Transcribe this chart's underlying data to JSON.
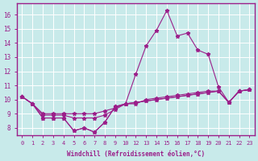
{
  "background_color": "#c8eaea",
  "line_color": "#9b1f8a",
  "grid_color": "#ffffff",
  "xlabel": "Windchill (Refroidissement éolien,°C)",
  "ylim": [
    7.5,
    16.8
  ],
  "yticks": [
    8,
    9,
    10,
    11,
    12,
    13,
    14,
    15,
    16
  ],
  "xtick_labels": [
    "0",
    "1",
    "2",
    "3",
    "4",
    "5",
    "6",
    "7",
    "8",
    "9",
    "10",
    "12",
    "13",
    "14",
    "15",
    "16",
    "17",
    "18",
    "19",
    "20",
    "21",
    "22",
    "23"
  ],
  "x_vals": [
    0,
    1,
    2,
    3,
    4,
    5,
    6,
    7,
    8,
    9,
    10,
    11,
    12,
    13,
    14,
    15,
    16,
    17,
    18,
    19,
    20,
    21,
    22
  ],
  "series": [
    [
      10.2,
      9.7,
      8.7,
      8.7,
      8.7,
      7.8,
      8.0,
      7.7,
      8.4,
      9.5,
      9.7,
      11.8,
      13.8,
      14.9,
      16.3,
      14.5,
      14.7,
      13.5,
      13.2,
      10.9,
      9.8,
      10.6,
      10.7
    ],
    [
      10.2,
      9.7,
      8.7,
      8.7,
      8.7,
      7.8,
      8.0,
      7.7,
      8.4,
      9.5,
      9.7,
      9.7,
      10.0,
      10.1,
      10.2,
      10.3,
      10.4,
      10.5,
      10.6,
      10.6,
      9.8,
      10.6,
      10.7
    ],
    [
      10.2,
      9.7,
      8.9,
      8.9,
      8.9,
      8.7,
      8.7,
      8.7,
      8.9,
      9.3,
      9.7,
      9.8,
      9.9,
      10.0,
      10.1,
      10.2,
      10.3,
      10.4,
      10.5,
      10.6,
      9.8,
      10.6,
      10.7
    ],
    [
      10.2,
      9.7,
      9.0,
      9.0,
      9.0,
      9.0,
      9.0,
      9.0,
      9.2,
      9.4,
      9.7,
      9.8,
      9.9,
      10.0,
      10.1,
      10.2,
      10.3,
      10.4,
      10.5,
      10.6,
      9.8,
      10.6,
      10.7
    ]
  ]
}
